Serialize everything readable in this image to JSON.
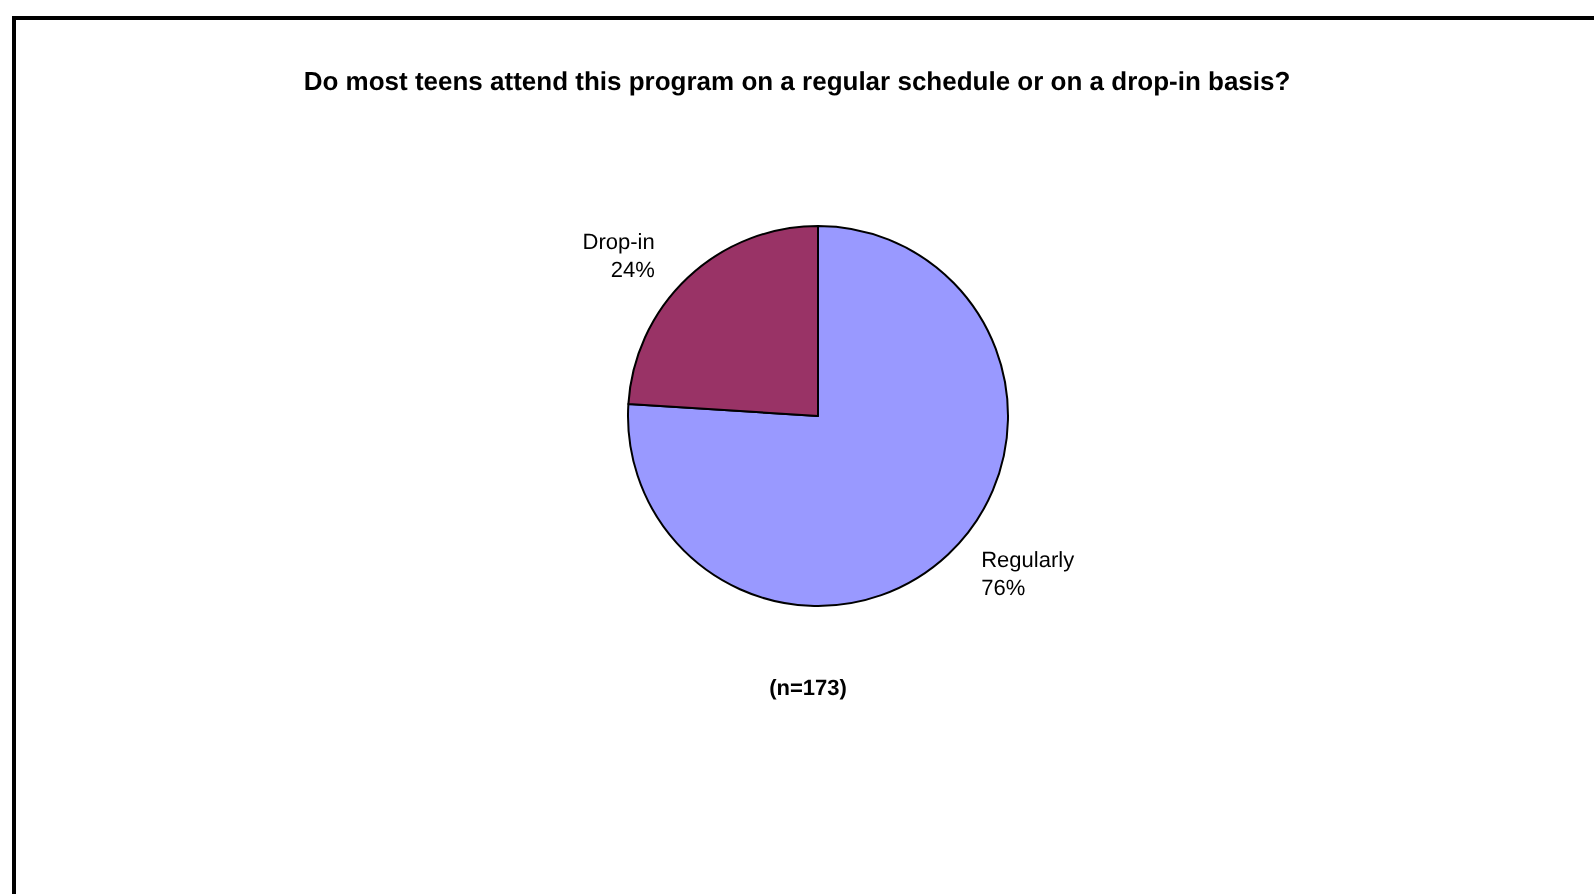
{
  "chart_data": {
    "type": "pie",
    "title": "Do most teens attend this program on a regular schedule or on a drop-in basis?",
    "categories": [
      "Regularly",
      "Drop-in"
    ],
    "values": [
      76,
      24
    ],
    "colors": [
      "#9999ff",
      "#993366"
    ],
    "value_labels": [
      "76%",
      "24%"
    ],
    "annotations": [
      "(n=173)"
    ]
  }
}
